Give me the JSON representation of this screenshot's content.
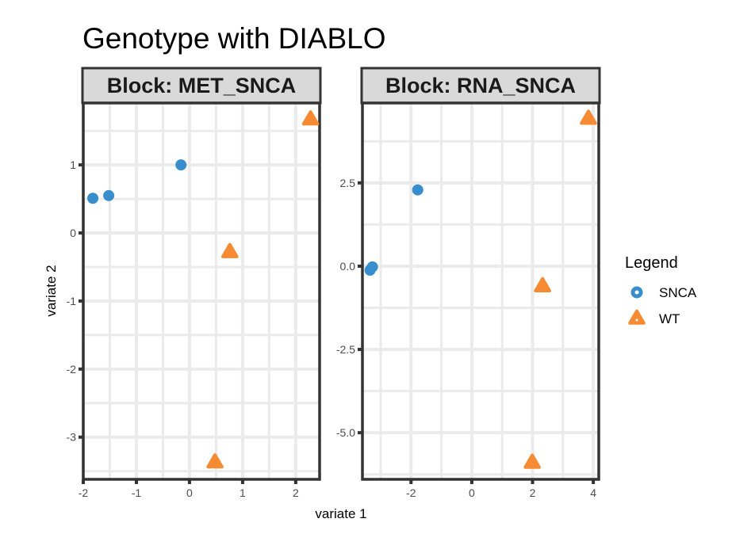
{
  "chart_data": {
    "type": "scatter",
    "title": "Genotype with DIABLO",
    "xlabel": "variate 1",
    "ylabel": "variate 2",
    "grid": true,
    "legend": {
      "title": "Legend",
      "placement": "right",
      "entries": [
        {
          "name": "SNCA",
          "shape": "circle",
          "color": "#388ECC"
        },
        {
          "name": "WT",
          "shape": "triangle",
          "color": "#F68B33"
        }
      ]
    },
    "panels": [
      {
        "strip": "Block: MET_SNCA",
        "xlim": [
          -2.0,
          2.45
        ],
        "ylim": [
          -3.62,
          1.91
        ],
        "xticks": [
          -2,
          -1,
          0,
          1,
          2
        ],
        "xtick_labels": [
          "-2",
          "-1",
          "0",
          "1",
          "2"
        ],
        "yticks": [
          -3,
          -2,
          -1,
          0,
          1
        ],
        "ytick_labels": [
          "-3",
          "-2",
          "-1",
          "0",
          "1"
        ],
        "series": [
          {
            "name": "SNCA",
            "points": [
              [
                -1.82,
                0.51
              ],
              [
                -1.52,
                0.55
              ],
              [
                -0.16,
                1.0
              ]
            ]
          },
          {
            "name": "WT",
            "points": [
              [
                0.76,
                -0.28
              ],
              [
                0.48,
                -3.37
              ],
              [
                2.28,
                1.67
              ]
            ]
          }
        ]
      },
      {
        "strip": "Block: RNA_SNCA",
        "xlim": [
          -3.6,
          4.18
        ],
        "ylim": [
          -6.4,
          4.9
        ],
        "xticks": [
          -2,
          0,
          2,
          4
        ],
        "xtick_labels": [
          "-2",
          "0",
          "2",
          "4"
        ],
        "yticks": [
          -5,
          -2.5,
          0,
          2.5
        ],
        "ytick_labels": [
          "-5.0",
          "-2.5",
          "0.0",
          "2.5"
        ],
        "series": [
          {
            "name": "SNCA",
            "points": [
              [
                -3.27,
                -0.02
              ],
              [
                -3.35,
                -0.12
              ],
              [
                -1.78,
                2.29
              ]
            ]
          },
          {
            "name": "WT",
            "points": [
              [
                2.33,
                -0.6
              ],
              [
                1.99,
                -5.9
              ],
              [
                3.84,
                4.43
              ]
            ]
          }
        ]
      }
    ]
  }
}
